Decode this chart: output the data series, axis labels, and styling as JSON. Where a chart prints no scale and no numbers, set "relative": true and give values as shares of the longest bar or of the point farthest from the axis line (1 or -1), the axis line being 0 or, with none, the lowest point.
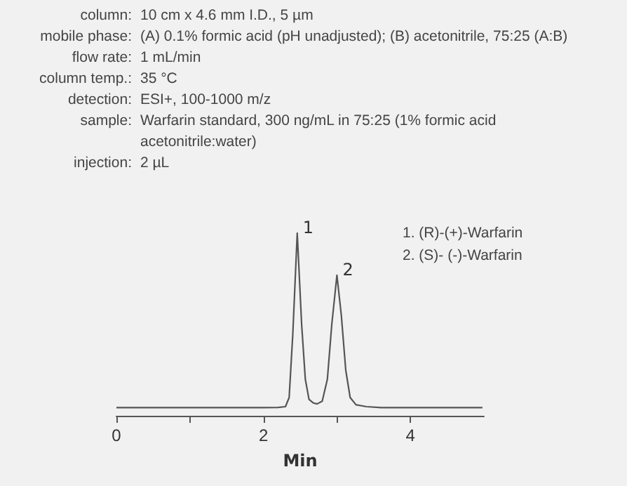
{
  "chart_data": {
    "type": "line",
    "relative": true,
    "xlabel": "Min",
    "xlim": [
      0,
      5
    ],
    "xticks": [
      0,
      {
        "value": 1,
        "label": null
      },
      2,
      {
        "value": 3,
        "label": null
      },
      4
    ],
    "x": [
      0,
      0.5,
      1,
      1.5,
      2,
      2.2,
      2.3,
      2.35,
      2.4,
      2.46,
      2.52,
      2.57,
      2.62,
      2.68,
      2.73,
      2.8,
      2.87,
      2.93,
      3.0,
      3.06,
      3.12,
      3.18,
      3.26,
      3.4,
      3.6,
      4,
      4.5,
      4.98
    ],
    "series": [
      {
        "color": "#555555",
        "values": [
          0.045,
          0.045,
          0.045,
          0.045,
          0.045,
          0.046,
          0.05,
          0.1,
          0.45,
          1,
          0.5,
          0.2,
          0.09,
          0.07,
          0.065,
          0.08,
          0.2,
          0.5,
          0.77,
          0.55,
          0.25,
          0.1,
          0.06,
          0.05,
          0.045,
          0.045,
          0.045,
          0.045
        ]
      }
    ],
    "grid": false,
    "marker": "none",
    "line_style": "solid",
    "annotations": [
      "column: 10 cm x 4.6 mm I.D., 5 µm",
      "mobile phase: (A) 0.1% formic acid (pH unadjusted); (B) acetonitrile, 75:25 (A:B)",
      "flow rate: 1 mL/min",
      "column temp.: 35 °C",
      "detection: ESI+, 100-1000 m/z",
      "sample: Warfarin standard, 300 ng/mL in 75:25 (1% formic acid acetonitrile:water)",
      "injection: 2 µL",
      "1.  (R)-(+)-Warfarin",
      "2.  (S)- (-)-Warfarin",
      {
        "text": "1",
        "x": 2.46,
        "y": 1
      },
      {
        "text": "2",
        "x": 3.0,
        "y": 0.77
      }
    ]
  }
}
